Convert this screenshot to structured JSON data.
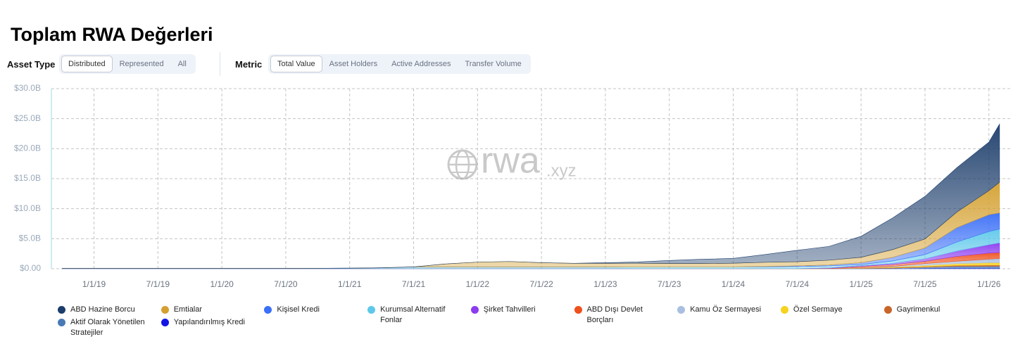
{
  "page_title": "Toplam RWA Değerleri",
  "controls": {
    "asset_type": {
      "label": "Asset Type",
      "options": [
        "Distributed",
        "Represented",
        "All"
      ],
      "selected": 0
    },
    "metric": {
      "label": "Metric",
      "options": [
        "Total Value",
        "Asset Holders",
        "Active Addresses",
        "Transfer Volume"
      ],
      "selected": 0
    }
  },
  "chart_data": {
    "type": "stacked_area",
    "watermark": {
      "main": "rwa",
      "suffix": ".xyz"
    },
    "x": [
      "10/1/18",
      "1/1/19",
      "7/1/19",
      "1/1/20",
      "7/1/20",
      "1/1/21",
      "4/1/21",
      "7/1/21",
      "10/1/21",
      "1/1/22",
      "4/1/22",
      "7/1/22",
      "10/1/22",
      "1/1/23",
      "4/1/23",
      "7/1/23",
      "10/1/23",
      "1/1/24",
      "4/1/24",
      "7/1/24",
      "10/1/24",
      "1/1/25",
      "4/1/25",
      "7/1/25",
      "10/1/25",
      "1/1/26",
      "2/1/26"
    ],
    "xlim": [
      "9/1/18",
      "3/1/26"
    ],
    "xticks": [
      "1/1/19",
      "7/1/19",
      "1/1/20",
      "7/1/20",
      "1/1/21",
      "7/1/21",
      "1/1/22",
      "7/1/22",
      "1/1/23",
      "7/1/23",
      "1/1/24",
      "7/1/24",
      "1/1/25",
      "7/1/25",
      "1/1/26"
    ],
    "ylim": [
      0,
      30
    ],
    "yticks": [
      {
        "value": 0,
        "label": "$0.00"
      },
      {
        "value": 5,
        "label": "$5.0B"
      },
      {
        "value": 10,
        "label": "$10.0B"
      },
      {
        "value": 15,
        "label": "$15.0B"
      },
      {
        "value": 20,
        "label": "$20.0B"
      },
      {
        "value": 25,
        "label": "$25.0B"
      },
      {
        "value": 30,
        "label": "$30.0B"
      }
    ],
    "grid": true,
    "series": [
      {
        "name": "ABD Hazine Borcu",
        "color": "#1c3d6b",
        "values": [
          0,
          0,
          0,
          0,
          0,
          0,
          0,
          0,
          0,
          0,
          0,
          0,
          0,
          0.1,
          0.2,
          0.5,
          0.7,
          0.8,
          1.3,
          1.9,
          2.3,
          3.5,
          5.3,
          7.1,
          7.4,
          8.1,
          9.7
        ]
      },
      {
        "name": "Emtialar",
        "color": "#d4a030",
        "values": [
          0,
          0,
          0,
          0,
          0,
          0,
          0,
          0,
          0.5,
          0.8,
          0.9,
          0.7,
          0.6,
          0.6,
          0.6,
          0.55,
          0.55,
          0.6,
          0.7,
          0.7,
          0.8,
          0.9,
          1.3,
          1.5,
          2.6,
          4.0,
          5.1
        ]
      },
      {
        "name": "Kişisel Kredi",
        "color": "#3a6ff7",
        "values": [
          0,
          0,
          0,
          0,
          0,
          0,
          0,
          0,
          0,
          0,
          0,
          0,
          0,
          0,
          0,
          0,
          0,
          0,
          0.05,
          0.1,
          0.15,
          0.3,
          0.6,
          1.1,
          2.4,
          2.8,
          2.7
        ]
      },
      {
        "name": "Kurumsal Alternatif Fonlar",
        "color": "#5ec8ea",
        "values": [
          0.05,
          0.05,
          0.05,
          0.05,
          0.05,
          0.1,
          0.15,
          0.3,
          0.3,
          0.3,
          0.3,
          0.3,
          0.3,
          0.3,
          0.3,
          0.3,
          0.3,
          0.3,
          0.3,
          0.35,
          0.35,
          0.2,
          0.4,
          0.7,
          1.5,
          2.2,
          2.3
        ]
      },
      {
        "name": "Şirket Tahvilleri",
        "color": "#8b3cf0",
        "values": [
          0,
          0,
          0,
          0,
          0,
          0,
          0,
          0,
          0,
          0,
          0,
          0,
          0,
          0,
          0,
          0,
          0,
          0,
          0,
          0,
          0.05,
          0.1,
          0.2,
          0.4,
          0.9,
          1.4,
          1.6
        ]
      },
      {
        "name": "ABD Dışı Devlet Borçları",
        "color": "#f0501c",
        "values": [
          0,
          0,
          0,
          0,
          0,
          0,
          0,
          0,
          0,
          0,
          0,
          0,
          0,
          0,
          0,
          0,
          0,
          0,
          0,
          0,
          0.05,
          0.2,
          0.3,
          0.4,
          0.8,
          1.0,
          1.0
        ]
      },
      {
        "name": "Kamu Öz Sermayesi",
        "color": "#a9bfe0",
        "values": [
          0,
          0,
          0,
          0,
          0,
          0,
          0,
          0,
          0,
          0,
          0,
          0,
          0,
          0,
          0,
          0,
          0,
          0,
          0,
          0,
          0,
          0.05,
          0.1,
          0.3,
          0.4,
          0.6,
          0.7
        ]
      },
      {
        "name": "Özel Sermaye",
        "color": "#f7d21e",
        "values": [
          0,
          0,
          0,
          0,
          0,
          0,
          0,
          0,
          0,
          0,
          0,
          0,
          0,
          0,
          0,
          0,
          0,
          0,
          0,
          0,
          0,
          0.05,
          0.1,
          0.2,
          0.3,
          0.4,
          0.4
        ]
      },
      {
        "name": "Gayrimenkul",
        "color": "#c8652a",
        "values": [
          0,
          0,
          0,
          0,
          0,
          0,
          0,
          0,
          0,
          0,
          0,
          0,
          0,
          0,
          0.02,
          0.02,
          0.02,
          0.02,
          0.02,
          0.02,
          0.02,
          0.05,
          0.1,
          0.1,
          0.15,
          0.2,
          0.2
        ]
      },
      {
        "name": "Aktif Olarak Yönetilen Stratejiler",
        "color": "#4a7ab5",
        "values": [
          0,
          0,
          0,
          0,
          0,
          0,
          0,
          0,
          0,
          0,
          0,
          0,
          0,
          0,
          0,
          0,
          0,
          0,
          0,
          0,
          0,
          0.05,
          0.1,
          0.2,
          0.3,
          0.3,
          0.3
        ]
      },
      {
        "name": "Yapılandırılmış Kredi",
        "color": "#1414e6",
        "values": [
          0,
          0,
          0,
          0,
          0,
          0,
          0,
          0,
          0,
          0,
          0,
          0,
          0,
          0,
          0,
          0,
          0,
          0,
          0,
          0,
          0,
          0,
          0,
          0.05,
          0.1,
          0.1,
          0.1
        ]
      }
    ]
  }
}
